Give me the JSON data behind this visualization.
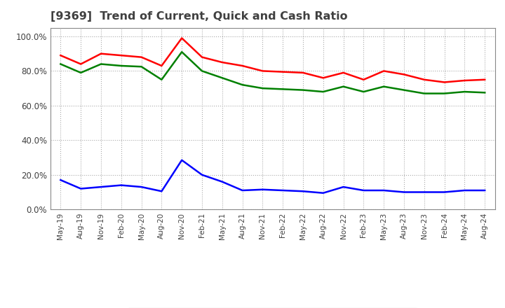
{
  "title": "[9369]  Trend of Current, Quick and Cash Ratio",
  "labels": [
    "May-19",
    "Aug-19",
    "Nov-19",
    "Feb-20",
    "May-20",
    "Aug-20",
    "Nov-20",
    "Feb-21",
    "May-21",
    "Aug-21",
    "Nov-21",
    "Feb-22",
    "May-22",
    "Aug-22",
    "Nov-22",
    "Feb-23",
    "May-23",
    "Aug-23",
    "Nov-23",
    "Feb-24",
    "May-24",
    "Aug-24"
  ],
  "current_ratio": [
    89.0,
    84.0,
    90.0,
    89.0,
    88.0,
    83.0,
    99.0,
    88.0,
    85.0,
    83.0,
    80.0,
    79.5,
    79.0,
    76.0,
    79.0,
    75.0,
    80.0,
    78.0,
    75.0,
    73.5,
    74.5,
    75.0
  ],
  "quick_ratio": [
    84.0,
    79.0,
    84.0,
    83.0,
    82.5,
    75.0,
    91.0,
    80.0,
    76.0,
    72.0,
    70.0,
    69.5,
    69.0,
    68.0,
    71.0,
    68.0,
    71.0,
    69.0,
    67.0,
    67.0,
    68.0,
    67.5
  ],
  "cash_ratio": [
    17.0,
    12.0,
    13.0,
    14.0,
    13.0,
    10.5,
    28.5,
    20.0,
    16.0,
    11.0,
    11.5,
    11.0,
    10.5,
    9.5,
    13.0,
    11.0,
    11.0,
    10.0,
    10.0,
    10.0,
    11.0,
    11.0
  ],
  "current_color": "#FF0000",
  "quick_color": "#008000",
  "cash_color": "#0000FF",
  "ylim": [
    0,
    105
  ],
  "yticks": [
    0,
    20,
    40,
    60,
    80,
    100
  ],
  "background_color": "#FFFFFF",
  "plot_bg_color": "#FFFFFF",
  "grid_color": "#AAAAAA",
  "title_color": "#404040",
  "tick_color": "#404040",
  "linewidth": 1.8,
  "xtick_fontsize": 7.5,
  "ytick_fontsize": 8.5,
  "title_fontsize": 11.5
}
